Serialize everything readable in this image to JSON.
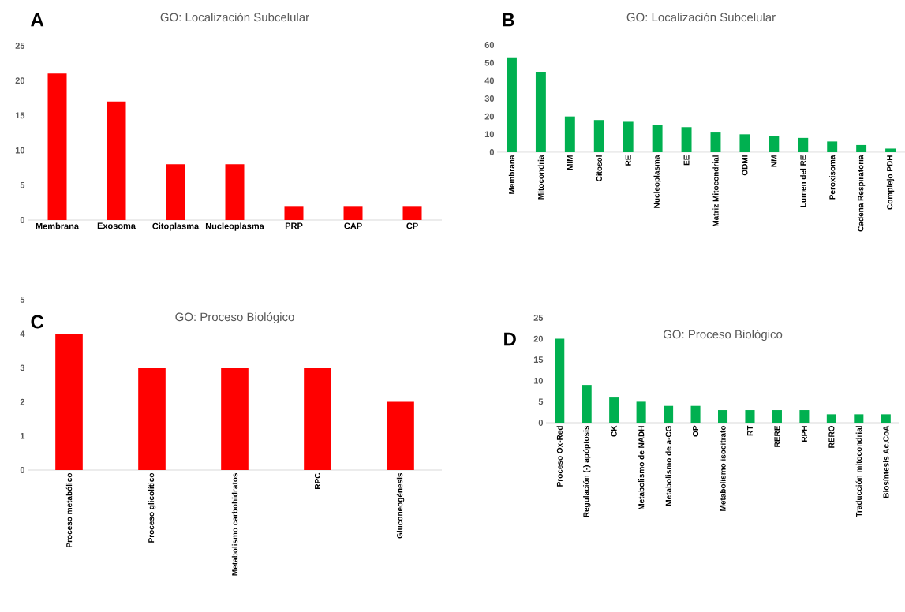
{
  "chart_data": [
    {
      "type": "bar",
      "title": "GO: Localización Subcelular",
      "annotations": [
        "A"
      ],
      "categories": [
        "Membrana",
        "Exosoma",
        "Citoplasma",
        "Nucleoplasma",
        "PRP",
        "CAP",
        "CP"
      ],
      "values": [
        21,
        17,
        8,
        8,
        2,
        2,
        2
      ],
      "color": "#ff0000",
      "ylim": [
        0,
        25
      ],
      "yticks": [
        0,
        5,
        10,
        15,
        20,
        25
      ]
    },
    {
      "type": "bar",
      "title": "GO: Localización Subcelular",
      "annotations": [
        "B"
      ],
      "categories": [
        "Membrana",
        "Mitocondria",
        "MIM",
        "Citosol",
        "RE",
        "Nucleoplasma",
        "EE",
        "Matriz Mitocondrial",
        "ODMI",
        "NM",
        "Lumen del RE",
        "Peroxisoma",
        "Cadena Respiratoria",
        "Complejo PDH"
      ],
      "values": [
        53,
        45,
        20,
        18,
        17,
        15,
        14,
        11,
        10,
        9,
        8,
        6,
        4,
        2
      ],
      "color": "#00b050",
      "ylim": [
        0,
        60
      ],
      "yticks": [
        0,
        10,
        20,
        30,
        40,
        50,
        60
      ]
    },
    {
      "type": "bar",
      "title": "GO: Proceso Biológico",
      "annotations": [
        "C"
      ],
      "categories": [
        "Proceso metabólico",
        "Proceso glicolítico",
        "Metabolismo carbohidratos",
        "RPC",
        "Gluconeogénesis"
      ],
      "values": [
        4,
        3,
        3,
        3,
        2
      ],
      "color": "#ff0000",
      "ylim": [
        0,
        5
      ],
      "yticks": [
        0,
        1,
        2,
        3,
        4,
        5
      ]
    },
    {
      "type": "bar",
      "title": "GO: Proceso Biológico",
      "annotations": [
        "D"
      ],
      "categories": [
        "Proceso Ox-Red",
        "Regulación (-) apóptosis",
        "CK",
        "Metabolismo de NADH",
        "Metabolismo de a-CG",
        "OP",
        "Metabolismo isocitrato",
        "RT",
        "RERE",
        "RPH",
        "RERO",
        "Traducción mitocondrial",
        "Biosíntesis Ac.CoA"
      ],
      "values": [
        20,
        9,
        6,
        5,
        4,
        4,
        3,
        3,
        3,
        3,
        2,
        2,
        2
      ],
      "color": "#00b050",
      "ylim": [
        0,
        25
      ],
      "yticks": [
        0,
        5,
        10,
        15,
        20,
        25
      ]
    }
  ]
}
